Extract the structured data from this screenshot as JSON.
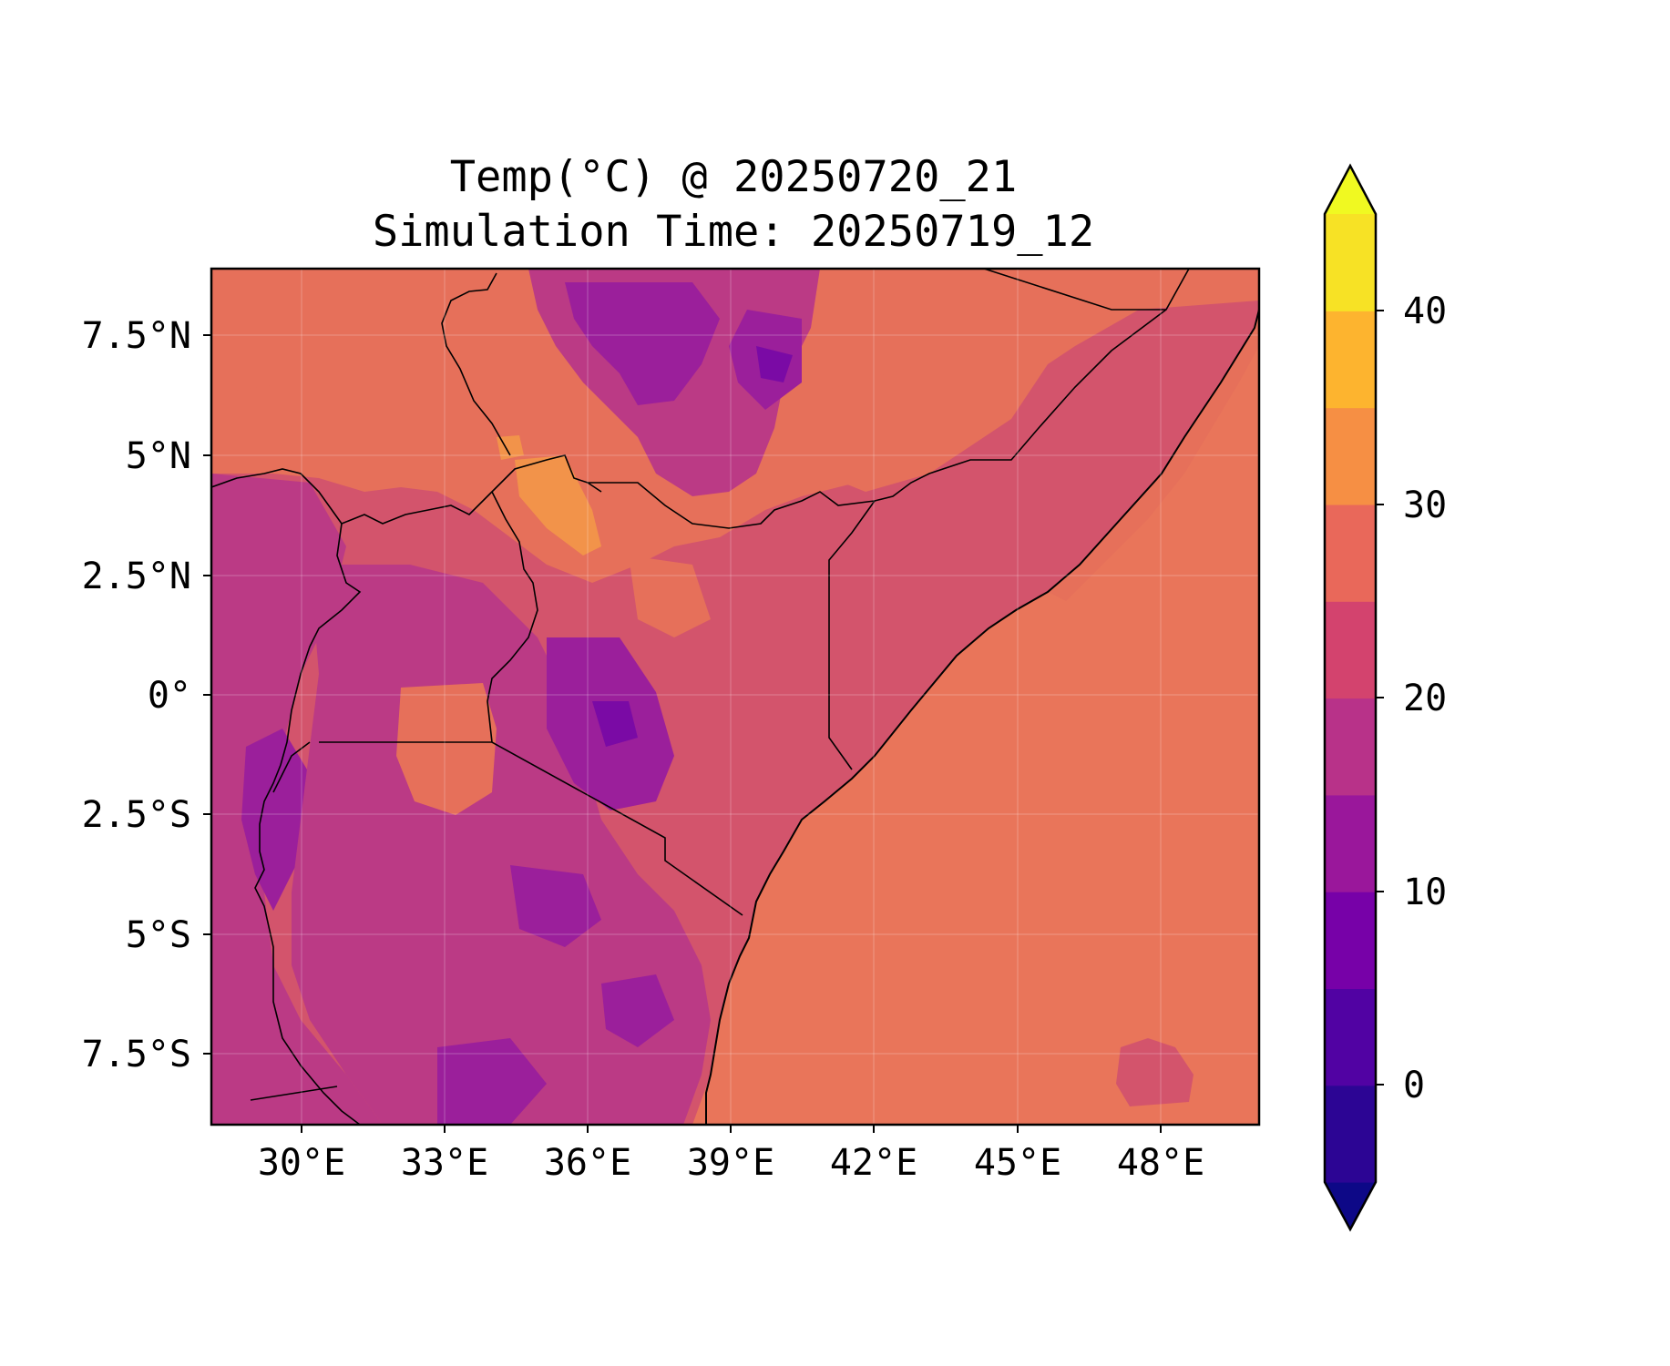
{
  "title": {
    "line1": "Temp(°C) @ 20250720_21",
    "line2": "Simulation Time: 20250719_12"
  },
  "map": {
    "x_ticks": [
      "30°E",
      "33°E",
      "36°E",
      "39°E",
      "42°E",
      "45°E",
      "48°E"
    ],
    "y_ticks": [
      "7.5°N",
      "5°N",
      "2.5°N",
      "0°",
      "2.5°S",
      "5°S",
      "7.5°S"
    ],
    "lon_range": [
      28.1,
      50.0
    ],
    "lat_range": [
      -8.9,
      9.0
    ]
  },
  "colorbar": {
    "ticks": [
      "0",
      "10",
      "20",
      "30",
      "40"
    ],
    "levels": [
      -5,
      0,
      5,
      10,
      15,
      20,
      25,
      30,
      35,
      40,
      45
    ],
    "extend": "both",
    "colors": [
      "#0d0887",
      "#2c0594",
      "#5102a3",
      "#7701a8",
      "#9a179b",
      "#b83289",
      "#d3436e",
      "#e9685a",
      "#f68f44",
      "#fdb42f",
      "#f7e225",
      "#f0f921"
    ]
  },
  "palette": {
    "ocean": "#e9755a",
    "warm": "#e6705a",
    "hot": "#f2934a",
    "mild": "#d3546c",
    "cool": "#bb3a85",
    "cold": "#9b1f9b",
    "coldest": "#7a0aa5"
  }
}
